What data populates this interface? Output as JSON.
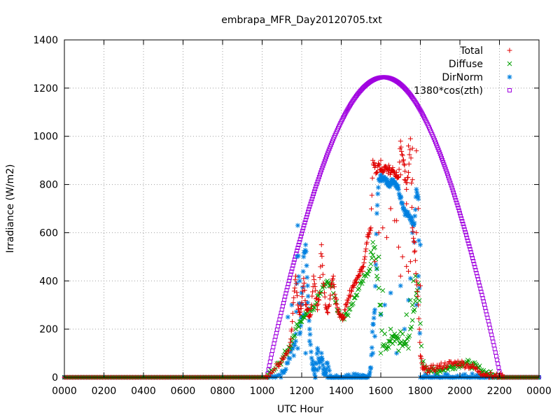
{
  "chart_data": {
    "type": "scatter",
    "title": "embrapa_MFR_Day20120705.txt",
    "xlabel": "UTC Hour",
    "ylabel": "Irradiance (W/m2)",
    "x_range_hours": [
      0,
      24
    ],
    "ylim": [
      0,
      1400
    ],
    "x_tick_labels": [
      "0000",
      "0200",
      "0400",
      "0600",
      "0800",
      "1000",
      "1200",
      "1400",
      "1600",
      "1800",
      "2000",
      "2200",
      "0000"
    ],
    "y_ticks": [
      0,
      200,
      400,
      600,
      800,
      1000,
      1200,
      1400
    ],
    "grid": true,
    "legend_position": "top-right",
    "series": [
      {
        "name": "Total",
        "marker": "plus",
        "color": "#e00000",
        "x": [
          10.2,
          10.5,
          10.8,
          11.0,
          11.2,
          11.4,
          11.5,
          11.6,
          11.7,
          11.8,
          11.9,
          12.0,
          12.1,
          12.2,
          12.3,
          12.4,
          12.5,
          12.6,
          12.7,
          12.8,
          12.9,
          13.0,
          13.1,
          13.2,
          13.3,
          13.4,
          13.5,
          13.6,
          13.7,
          13.8,
          13.9,
          14.0,
          14.1,
          14.2,
          14.3,
          14.4,
          14.5,
          14.6,
          14.7,
          14.8,
          14.9,
          15.0,
          15.1,
          15.2,
          15.3,
          15.4,
          15.5,
          15.6,
          15.7,
          15.8,
          15.9,
          16.0,
          16.1,
          16.2,
          16.3,
          16.4,
          16.5,
          16.6,
          16.7,
          16.8,
          16.9,
          17.0,
          17.1,
          17.2,
          17.3,
          17.4,
          17.5,
          17.6,
          17.7,
          17.8,
          17.9,
          18.0,
          18.1,
          18.2,
          18.4,
          18.6,
          18.8,
          19.0,
          19.2,
          19.4,
          19.6,
          19.8,
          20.0,
          20.2,
          20.4,
          20.6,
          20.8,
          21.0,
          21.2,
          21.4,
          21.6,
          21.8,
          22.0,
          22.2
        ],
        "y": [
          5,
          20,
          50,
          80,
          100,
          130,
          200,
          330,
          420,
          300,
          260,
          310,
          410,
          300,
          280,
          250,
          300,
          420,
          360,
          280,
          350,
          550,
          390,
          300,
          270,
          300,
          390,
          420,
          330,
          290,
          260,
          250,
          250,
          280,
          320,
          340,
          360,
          380,
          400,
          410,
          420,
          440,
          460,
          500,
          560,
          600,
          620,
          900,
          870,
          850,
          880,
          860,
          850,
          870,
          860,
          860,
          850,
          870,
          850,
          840,
          830,
          980,
          920,
          880,
          780,
          850,
          990,
          620,
          560,
          400,
          300,
          90,
          40,
          30,
          35,
          35,
          40,
          45,
          50,
          55,
          55,
          60,
          60,
          55,
          50,
          45,
          35,
          25,
          15,
          8,
          5,
          3,
          2,
          1
        ],
        "extra_x": [
          16.0,
          16.2,
          16.4,
          16.6,
          16.8,
          17.0,
          17.2,
          17.4,
          17.6,
          17.8,
          15.9,
          16.1,
          16.3,
          16.5,
          16.7,
          16.9,
          17.1,
          17.3,
          17.5,
          17.7,
          16.5,
          16.8,
          17.3,
          17.6,
          17.9,
          15.7,
          17.0,
          17.4,
          18.0,
          17.8
        ],
        "extra_y": [
          900,
          870,
          880,
          860,
          850,
          840,
          820,
          960,
          950,
          940,
          600,
          620,
          580,
          700,
          650,
          540,
          500,
          460,
          480,
          520,
          700,
          650,
          720,
          820,
          700,
          480,
          420,
          440,
          380,
          600
        ]
      },
      {
        "name": "Diffuse",
        "marker": "cross",
        "color": "#00a000",
        "x": [
          10.3,
          10.6,
          10.9,
          11.1,
          11.3,
          11.5,
          11.7,
          11.9,
          12.1,
          12.3,
          12.5,
          12.7,
          12.9,
          13.1,
          13.3,
          13.5,
          13.7,
          13.9,
          14.1,
          14.3,
          14.5,
          14.7,
          14.9,
          15.1,
          15.3,
          15.5,
          15.7,
          15.9,
          16.1,
          16.3,
          16.5,
          16.7,
          16.9,
          17.1,
          17.3,
          17.5,
          17.7,
          17.9,
          18.1,
          18.3,
          18.5,
          18.7,
          18.9,
          19.1,
          19.3,
          19.5,
          19.7,
          19.9,
          20.1,
          20.3,
          20.5,
          20.7,
          20.9,
          21.1,
          21.3,
          21.5,
          21.7,
          21.9,
          22.1
        ],
        "y": [
          10,
          30,
          60,
          90,
          110,
          150,
          200,
          230,
          250,
          270,
          280,
          300,
          350,
          380,
          400,
          390,
          310,
          270,
          250,
          260,
          300,
          330,
          370,
          400,
          430,
          470,
          540,
          370,
          130,
          120,
          150,
          180,
          160,
          130,
          140,
          200,
          280,
          390,
          60,
          40,
          30,
          25,
          30,
          35,
          38,
          42,
          48,
          55,
          58,
          60,
          55,
          48,
          40,
          30,
          20,
          12,
          6,
          3,
          1
        ],
        "extra_x": [
          15.5,
          15.6,
          15.8,
          16.0,
          16.2,
          16.4,
          16.6,
          16.8,
          17.0,
          17.2,
          17.4,
          17.6,
          17.8,
          16.1,
          16.3,
          16.5,
          16.7,
          16.9,
          17.1,
          17.3,
          17.5,
          17.7,
          15.9,
          16.0,
          17.65,
          17.75
        ],
        "extra_y": [
          520,
          560,
          420,
          300,
          180,
          150,
          140,
          160,
          190,
          150,
          120,
          300,
          330,
          360,
          120,
          200,
          150,
          110,
          180,
          260,
          320,
          280,
          500,
          100,
          400,
          420
        ]
      },
      {
        "name": "DirNorm",
        "marker": "star",
        "color": "#0080e0",
        "x": [
          10.3,
          10.6,
          10.9,
          11.1,
          11.3,
          11.5,
          11.7,
          11.8,
          11.9,
          12.0,
          12.1,
          12.2,
          12.3,
          12.4,
          12.5,
          12.6,
          12.7,
          12.8,
          12.9,
          13.0,
          13.1,
          13.2,
          13.3,
          13.5,
          14.0,
          14.5,
          15.0,
          15.2,
          15.4,
          15.5,
          15.6,
          15.7,
          15.8,
          15.9,
          16.0,
          16.1,
          16.2,
          16.3,
          16.4,
          16.5,
          16.6,
          16.7,
          16.8,
          16.9,
          17.0,
          17.1,
          17.2,
          17.3,
          17.4,
          17.5,
          17.6,
          17.7,
          17.8,
          17.9,
          18.0,
          18.5,
          19.0,
          19.5,
          20.0,
          20.5,
          21.0,
          21.5,
          22.0
        ],
        "y": [
          0,
          5,
          10,
          20,
          60,
          120,
          150,
          630,
          180,
          250,
          500,
          550,
          380,
          200,
          80,
          30,
          0,
          120,
          60,
          100,
          30,
          10,
          60,
          0,
          0,
          0,
          0,
          5,
          10,
          40,
          220,
          280,
          680,
          820,
          830,
          830,
          820,
          810,
          810,
          800,
          820,
          810,
          800,
          780,
          750,
          720,
          690,
          680,
          670,
          660,
          650,
          640,
          780,
          740,
          0,
          0,
          0,
          0,
          0,
          0,
          0,
          0,
          0
        ],
        "extra_x": [
          11.3,
          11.5,
          11.7,
          11.9,
          12.0,
          12.2,
          12.4,
          12.6,
          12.8,
          13.0,
          13.2,
          11.6,
          11.8,
          12.1,
          12.3,
          12.7,
          12.9,
          13.1,
          15.6,
          15.8,
          16.0,
          16.5,
          17.0,
          17.5,
          17.7,
          17.9,
          18.0,
          15.7,
          16.2,
          16.8,
          17.2,
          17.4,
          17.6,
          17.8
        ],
        "extra_y": [
          250,
          300,
          180,
          400,
          350,
          100,
          150,
          50,
          30,
          80,
          20,
          90,
          120,
          260,
          310,
          60,
          40,
          15,
          100,
          450,
          260,
          350,
          380,
          410,
          560,
          420,
          550,
          170,
          300,
          100,
          200,
          320,
          600,
          300
        ]
      },
      {
        "name": "1380*cos(zth)",
        "marker": "square",
        "color": "#a000e0",
        "sunrise_hour": 10.25,
        "sunset_hour": 22.05,
        "peak_hour": 16.15,
        "peak_value": 1245
      }
    ]
  }
}
